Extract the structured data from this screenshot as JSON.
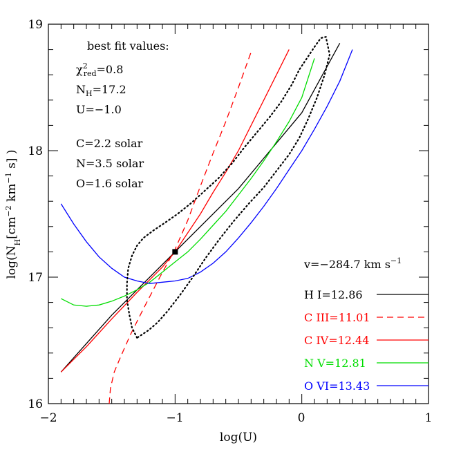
{
  "chart_data": {
    "type": "line",
    "xlabel": "log(U)",
    "ylabel": "log(N_H[cm^-2 km^-1 s] )",
    "xlim": [
      -2,
      1
    ],
    "ylim": [
      16,
      19
    ],
    "x_ticks": [
      "−2",
      "−1",
      "0",
      "1"
    ],
    "y_ticks": [
      "16",
      "17",
      "18",
      "19"
    ],
    "grid": false,
    "annotations": {
      "title": "best fit values:",
      "chi": "=0.8",
      "nh": "=17.2",
      "u": "U=−1.0",
      "c": "C=2.2 solar",
      "n": "N=3.5 solar",
      "o": "O=1.6 solar"
    },
    "velocity_label": "v=−284.7 km s",
    "velocity_exp": "−1",
    "best_fit_point": {
      "x": -1.0,
      "y": 17.2
    },
    "series": [
      {
        "name": "H  I=12.86",
        "color": "#000000",
        "dash": "solid",
        "x": [
          -1.9,
          -1.5,
          -1.0,
          -0.5,
          0.0,
          0.3
        ],
        "y": [
          16.25,
          16.7,
          17.2,
          17.7,
          18.3,
          18.85
        ]
      },
      {
        "name": "C  III=11.01",
        "color": "#ff0000",
        "dash": "dashed",
        "x": [
          -1.52,
          -1.51,
          -1.48,
          -1.43,
          -1.35,
          -1.25,
          -1.12,
          -1.0,
          -0.9,
          -0.8,
          -0.7,
          -0.6,
          -0.5,
          -0.4
        ],
        "y": [
          16.0,
          16.12,
          16.25,
          16.37,
          16.55,
          16.75,
          17.0,
          17.22,
          17.45,
          17.72,
          17.98,
          18.23,
          18.5,
          18.78
        ]
      },
      {
        "name": "C  IV=12.44",
        "color": "#ff0000",
        "dash": "solid",
        "x": [
          -1.9,
          -1.7,
          -1.5,
          -1.3,
          -1.2,
          -1.1,
          -1.0,
          -0.9,
          -0.8,
          -0.7,
          -0.6,
          -0.5,
          -0.4,
          -0.3,
          -0.2,
          -0.1
        ],
        "y": [
          16.25,
          16.45,
          16.67,
          16.88,
          16.98,
          17.08,
          17.2,
          17.35,
          17.5,
          17.67,
          17.83,
          18.0,
          18.2,
          18.4,
          18.6,
          18.8
        ]
      },
      {
        "name": "N  V=12.81",
        "color": "#00dd00",
        "dash": "solid",
        "x": [
          -1.9,
          -1.8,
          -1.7,
          -1.6,
          -1.5,
          -1.4,
          -1.3,
          -1.2,
          -1.1,
          -1.0,
          -0.9,
          -0.8,
          -0.7,
          -0.6,
          -0.5,
          -0.4,
          -0.3,
          -0.2,
          -0.1,
          0.0,
          0.1
        ],
        "y": [
          16.83,
          16.78,
          16.77,
          16.78,
          16.81,
          16.85,
          16.9,
          16.96,
          17.04,
          17.12,
          17.2,
          17.3,
          17.41,
          17.52,
          17.65,
          17.78,
          17.92,
          18.07,
          18.23,
          18.42,
          18.73
        ]
      },
      {
        "name": "O  VI=13.43",
        "color": "#0000ff",
        "dash": "solid",
        "x": [
          -1.9,
          -1.8,
          -1.7,
          -1.6,
          -1.5,
          -1.4,
          -1.3,
          -1.2,
          -1.1,
          -1.0,
          -0.9,
          -0.8,
          -0.7,
          -0.6,
          -0.5,
          -0.4,
          -0.3,
          -0.2,
          -0.1,
          0.0,
          0.1,
          0.2,
          0.3,
          0.4
        ],
        "y": [
          17.58,
          17.42,
          17.28,
          17.16,
          17.07,
          17.0,
          16.97,
          16.95,
          16.96,
          16.97,
          16.99,
          17.04,
          17.11,
          17.2,
          17.31,
          17.43,
          17.56,
          17.7,
          17.85,
          18.0,
          18.17,
          18.35,
          18.55,
          18.8
        ]
      },
      {
        "name": "",
        "color": "#000000",
        "dash": "dotted",
        "x": [
          -1.3,
          -1.34,
          -1.36,
          -1.38,
          -1.38,
          -1.37,
          -1.34,
          -1.3,
          -1.25,
          -1.17,
          -1.08,
          -0.98,
          -0.88,
          -0.78,
          -0.66,
          -0.55,
          -0.45,
          -0.35,
          -0.25,
          -0.16,
          -0.08,
          -0.02,
          0.04,
          0.1,
          0.15,
          0.19,
          0.22,
          0.18,
          0.12,
          0.05,
          -0.02,
          -0.1,
          -0.2,
          -0.3,
          -0.42,
          -0.54,
          -0.65,
          -0.76,
          -0.86,
          -0.96,
          -1.06,
          -1.14,
          -1.21,
          -1.27,
          -1.3
        ],
        "y": [
          16.52,
          16.6,
          16.7,
          16.82,
          16.95,
          17.07,
          17.17,
          17.25,
          17.31,
          17.37,
          17.43,
          17.5,
          17.58,
          17.67,
          17.78,
          17.9,
          18.03,
          18.15,
          18.27,
          18.39,
          18.52,
          18.64,
          18.73,
          18.82,
          18.89,
          18.9,
          18.76,
          18.6,
          18.42,
          18.25,
          18.1,
          17.97,
          17.84,
          17.71,
          17.58,
          17.44,
          17.3,
          17.15,
          17.0,
          16.86,
          16.73,
          16.64,
          16.58,
          16.54,
          16.52
        ]
      }
    ]
  }
}
